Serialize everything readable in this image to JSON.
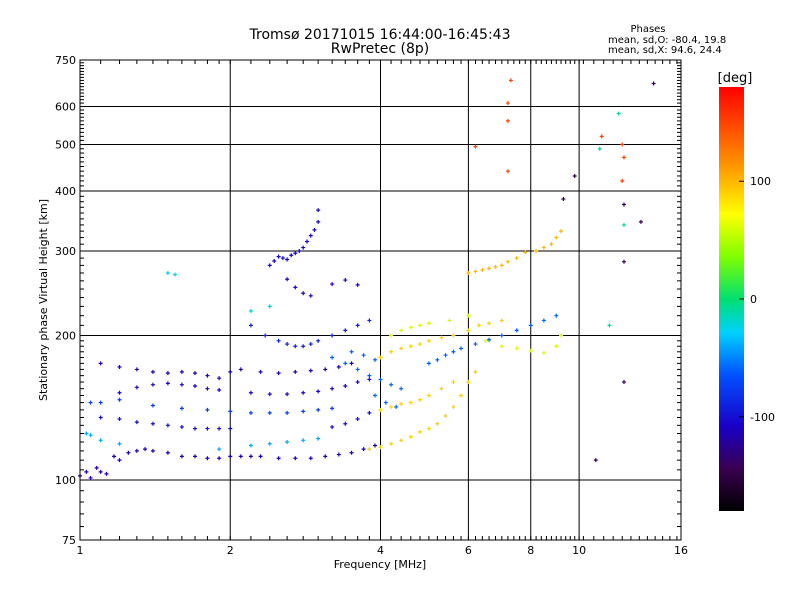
{
  "chart_data": {
    "type": "scatter",
    "title": "Tromsø 20171015 16:44:00-16:45:43",
    "subtitle": "RwPretec (8p)",
    "xlabel": "Frequency [MHz]",
    "ylabel": "Stationary phase Virtual Height [km]",
    "x_scale": "log",
    "y_scale": "log",
    "xlim": [
      1,
      16
    ],
    "ylim": [
      75,
      750
    ],
    "x_ticks": [
      "1",
      "2",
      "4",
      "6",
      "8",
      "10",
      "16"
    ],
    "x_tick_values": [
      1,
      2,
      4,
      6,
      8,
      10,
      16
    ],
    "y_ticks": [
      "75",
      "100",
      "200",
      "300",
      "400",
      "500",
      "600",
      "750"
    ],
    "y_tick_values": [
      75,
      100,
      200,
      300,
      400,
      500,
      600,
      750
    ],
    "x_gridlines": [
      2,
      4,
      6,
      8,
      10
    ],
    "y_gridlines": [
      100,
      200,
      300,
      400,
      500,
      600
    ],
    "stats": {
      "heading": "Phases",
      "o_line": "mean, sd,O: -80.4, 19.8",
      "x_line": "mean, sd,X:  94.6, 24.4"
    },
    "colorbar": {
      "label": "[deg]",
      "range": [
        -180,
        180
      ],
      "ticks": [
        "100",
        "0",
        "-100"
      ],
      "tick_values": [
        100,
        0,
        -100
      ],
      "colormap": "rainbow (black-purple-blue-cyan-green-yellow-orange-red)"
    },
    "series": [
      {
        "phase": -110,
        "points": [
          [
            1.0,
            102
          ],
          [
            1.03,
            104
          ],
          [
            1.05,
            101
          ],
          [
            1.08,
            106
          ],
          [
            1.1,
            104
          ],
          [
            1.13,
            103
          ],
          [
            1.17,
            112
          ],
          [
            1.2,
            110
          ],
          [
            1.25,
            114
          ],
          [
            1.3,
            115
          ],
          [
            1.35,
            116
          ],
          [
            1.4,
            115
          ],
          [
            1.5,
            114
          ],
          [
            1.6,
            112
          ],
          [
            1.7,
            112
          ],
          [
            1.8,
            111
          ],
          [
            1.9,
            111
          ],
          [
            2.0,
            112
          ],
          [
            2.1,
            112
          ],
          [
            2.2,
            112
          ],
          [
            2.3,
            112
          ],
          [
            2.5,
            111
          ],
          [
            2.7,
            111
          ],
          [
            2.9,
            111
          ],
          [
            3.1,
            112
          ],
          [
            3.3,
            113
          ],
          [
            3.5,
            114
          ],
          [
            3.7,
            116
          ],
          [
            3.9,
            118
          ]
        ]
      },
      {
        "phase": -40,
        "points": [
          [
            1.03,
            125
          ],
          [
            1.05,
            124
          ],
          [
            1.1,
            121
          ],
          [
            1.2,
            119
          ],
          [
            1.9,
            116
          ],
          [
            2.2,
            118
          ],
          [
            2.4,
            119
          ],
          [
            2.6,
            120
          ],
          [
            2.8,
            121
          ],
          [
            3.0,
            122
          ]
        ]
      },
      {
        "phase": -100,
        "points": [
          [
            1.1,
            135
          ],
          [
            1.2,
            134
          ],
          [
            1.3,
            132
          ],
          [
            1.4,
            131
          ],
          [
            1.5,
            130
          ],
          [
            1.6,
            129
          ],
          [
            1.7,
            128
          ],
          [
            1.8,
            128
          ],
          [
            1.9,
            128
          ],
          [
            2.0,
            128
          ],
          [
            3.2,
            129
          ],
          [
            3.4,
            131
          ],
          [
            3.6,
            134
          ],
          [
            3.8,
            138
          ]
        ]
      },
      {
        "phase": -75,
        "points": [
          [
            1.05,
            145
          ],
          [
            1.1,
            145
          ],
          [
            1.2,
            147
          ],
          [
            1.4,
            143
          ],
          [
            1.6,
            141
          ],
          [
            1.8,
            140
          ],
          [
            2.0,
            139
          ],
          [
            2.2,
            138
          ],
          [
            2.4,
            138
          ],
          [
            2.6,
            138
          ],
          [
            2.8,
            139
          ],
          [
            3.0,
            140
          ],
          [
            3.2,
            141
          ]
        ]
      },
      {
        "phase": -105,
        "points": [
          [
            1.2,
            152
          ],
          [
            1.3,
            156
          ],
          [
            1.4,
            158
          ],
          [
            1.5,
            159
          ],
          [
            1.6,
            158
          ],
          [
            1.7,
            157
          ],
          [
            1.8,
            155
          ],
          [
            1.9,
            154
          ],
          [
            2.2,
            152
          ],
          [
            2.4,
            151
          ],
          [
            2.6,
            151
          ],
          [
            2.8,
            152
          ],
          [
            3.0,
            153
          ],
          [
            3.2,
            155
          ],
          [
            3.4,
            157
          ],
          [
            3.6,
            160
          ],
          [
            3.8,
            162
          ]
        ]
      },
      {
        "phase": -110,
        "points": [
          [
            1.1,
            175
          ],
          [
            1.2,
            172
          ],
          [
            1.3,
            170
          ],
          [
            1.4,
            168
          ],
          [
            1.5,
            167
          ],
          [
            1.6,
            168
          ],
          [
            1.7,
            167
          ],
          [
            1.8,
            165
          ],
          [
            1.9,
            163
          ],
          [
            2.0,
            168
          ],
          [
            2.1,
            170
          ],
          [
            2.3,
            168
          ],
          [
            2.5,
            167
          ],
          [
            2.7,
            168
          ],
          [
            2.9,
            169
          ],
          [
            3.1,
            170
          ],
          [
            3.3,
            172
          ],
          [
            3.5,
            175
          ]
        ]
      },
      {
        "phase": -90,
        "points": [
          [
            2.2,
            210
          ],
          [
            2.35,
            200
          ],
          [
            2.5,
            195
          ],
          [
            2.6,
            192
          ],
          [
            2.7,
            190
          ],
          [
            2.8,
            190
          ],
          [
            2.9,
            192
          ],
          [
            3.0,
            195
          ],
          [
            3.2,
            200
          ],
          [
            3.4,
            205
          ],
          [
            3.6,
            210
          ],
          [
            3.8,
            215
          ]
        ]
      },
      {
        "phase": -105,
        "points": [
          [
            2.4,
            280
          ],
          [
            2.45,
            286
          ],
          [
            2.5,
            292
          ],
          [
            2.55,
            290
          ],
          [
            2.6,
            288
          ],
          [
            2.65,
            294
          ],
          [
            2.7,
            297
          ],
          [
            2.75,
            300
          ],
          [
            2.8,
            305
          ],
          [
            2.85,
            314
          ],
          [
            2.9,
            323
          ],
          [
            2.95,
            332
          ],
          [
            3.0,
            345
          ],
          [
            3.0,
            365
          ],
          [
            2.6,
            262
          ],
          [
            2.7,
            252
          ],
          [
            2.8,
            245
          ],
          [
            2.9,
            242
          ],
          [
            3.2,
            256
          ],
          [
            3.4,
            261
          ],
          [
            3.6,
            255
          ]
        ]
      },
      {
        "phase": -60,
        "points": [
          [
            3.2,
            180
          ],
          [
            3.4,
            175
          ],
          [
            3.6,
            170
          ],
          [
            3.8,
            165
          ],
          [
            4.0,
            162
          ],
          [
            4.2,
            158
          ],
          [
            4.4,
            155
          ],
          [
            3.9,
            150
          ],
          [
            4.1,
            145
          ],
          [
            4.3,
            142
          ],
          [
            3.5,
            185
          ],
          [
            3.7,
            182
          ],
          [
            3.9,
            178
          ]
        ]
      },
      {
        "phase": 90,
        "points": [
          [
            3.8,
            116
          ],
          [
            4.0,
            117
          ],
          [
            4.2,
            119
          ],
          [
            4.4,
            121
          ],
          [
            4.6,
            123
          ],
          [
            4.8,
            126
          ],
          [
            5.0,
            128
          ],
          [
            5.2,
            131
          ],
          [
            5.4,
            136
          ],
          [
            5.6,
            142
          ],
          [
            5.8,
            150
          ],
          [
            6.0,
            160
          ],
          [
            6.2,
            168
          ],
          [
            4.0,
            140
          ],
          [
            4.2,
            142
          ],
          [
            4.4,
            144
          ],
          [
            4.6,
            145
          ],
          [
            4.8,
            147
          ],
          [
            5.0,
            150
          ],
          [
            5.3,
            155
          ],
          [
            5.6,
            160
          ],
          [
            4.0,
            180
          ],
          [
            4.2,
            185
          ],
          [
            4.4,
            188
          ],
          [
            4.6,
            190
          ],
          [
            4.8,
            192
          ],
          [
            5.0,
            195
          ],
          [
            5.3,
            198
          ],
          [
            5.6,
            200
          ],
          [
            6.0,
            205
          ],
          [
            6.3,
            210
          ],
          [
            6.6,
            212
          ],
          [
            7.0,
            215
          ]
        ]
      },
      {
        "phase": 60,
        "points": [
          [
            4.2,
            200
          ],
          [
            4.4,
            205
          ],
          [
            4.6,
            208
          ],
          [
            4.8,
            210
          ],
          [
            5.0,
            212
          ],
          [
            5.5,
            215
          ],
          [
            6.0,
            220
          ],
          [
            6.5,
            195
          ],
          [
            7.0,
            190
          ],
          [
            7.5,
            188
          ],
          [
            8.0,
            186
          ],
          [
            8.5,
            184
          ],
          [
            9.0,
            190
          ],
          [
            9.2,
            200
          ]
        ]
      },
      {
        "phase": 100,
        "points": [
          [
            6.0,
            270
          ],
          [
            6.2,
            272
          ],
          [
            6.4,
            274
          ],
          [
            6.6,
            276
          ],
          [
            6.8,
            278
          ],
          [
            7.0,
            280
          ],
          [
            7.2,
            285
          ],
          [
            7.5,
            290
          ],
          [
            7.8,
            298
          ],
          [
            8.2,
            300
          ],
          [
            8.5,
            305
          ],
          [
            8.8,
            310
          ],
          [
            9.0,
            320
          ],
          [
            9.2,
            330
          ]
        ]
      },
      {
        "phase": -60,
        "points": [
          [
            5.0,
            175
          ],
          [
            5.2,
            178
          ],
          [
            5.4,
            182
          ],
          [
            5.6,
            185
          ],
          [
            5.8,
            188
          ],
          [
            6.2,
            192
          ],
          [
            6.6,
            196
          ],
          [
            7.0,
            200
          ],
          [
            7.5,
            205
          ],
          [
            8.0,
            210
          ],
          [
            8.5,
            215
          ],
          [
            9.0,
            220
          ]
        ]
      },
      {
        "phase": -20,
        "points": [
          [
            1.5,
            270
          ],
          [
            1.55,
            268
          ],
          [
            2.2,
            225
          ],
          [
            2.4,
            230
          ]
        ]
      },
      {
        "phase": 150,
        "points": [
          [
            6.2,
            495
          ],
          [
            7.2,
            440
          ],
          [
            7.2,
            560
          ],
          [
            7.2,
            610
          ],
          [
            7.3,
            680
          ],
          [
            11.1,
            520
          ],
          [
            12.2,
            420
          ],
          [
            12.2,
            500
          ],
          [
            12.3,
            470
          ]
        ]
      },
      {
        "phase": -140,
        "points": [
          [
            9.3,
            385
          ],
          [
            9.8,
            430
          ],
          [
            12.3,
            375
          ],
          [
            12.3,
            285
          ],
          [
            12.3,
            160
          ],
          [
            13.3,
            345
          ],
          [
            14.1,
            670
          ],
          [
            10.8,
            110
          ]
        ]
      },
      {
        "phase": -10,
        "points": [
          [
            11.0,
            490
          ],
          [
            11.5,
            210
          ],
          [
            12.0,
            580
          ],
          [
            12.3,
            340
          ]
        ]
      }
    ]
  }
}
